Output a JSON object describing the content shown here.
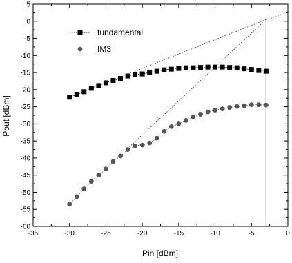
{
  "chart_data": {
    "type": "scatter",
    "xlabel": "Pin [dBm]",
    "ylabel": "Pout [dBm]",
    "xlim": [
      -35,
      0
    ],
    "ylim": [
      -60,
      5
    ],
    "xticks": [
      -35,
      -30,
      -25,
      -20,
      -15,
      -10,
      -5,
      0
    ],
    "yticks": [
      5,
      0,
      -5,
      -10,
      -15,
      -20,
      -25,
      -30,
      -35,
      -40,
      -45,
      -50,
      -55,
      -60
    ],
    "grid": false,
    "legend_position": "top-left",
    "series": [
      {
        "name": "fundamental",
        "marker": "square",
        "color": "#000000",
        "x": [
          -30,
          -29,
          -28,
          -27,
          -26,
          -25,
          -24,
          -23,
          -22,
          -21,
          -20,
          -19,
          -18,
          -17,
          -16,
          -15,
          -14,
          -13,
          -12,
          -11,
          -10,
          -9,
          -8,
          -7,
          -6,
          -5,
          -4,
          -3
        ],
        "y": [
          -22.2,
          -21.4,
          -20.6,
          -19.6,
          -18.8,
          -18.0,
          -17.3,
          -16.7,
          -16.0,
          -15.6,
          -15.4,
          -15.0,
          -14.6,
          -14.2,
          -14.0,
          -13.8,
          -13.6,
          -13.6,
          -13.5,
          -13.4,
          -13.4,
          -13.4,
          -13.5,
          -13.6,
          -13.9,
          -14.1,
          -14.4,
          -14.6
        ]
      },
      {
        "name": "IM3",
        "marker": "circle",
        "color": "#555555",
        "x": [
          -30,
          -29,
          -28,
          -27,
          -26,
          -25,
          -24,
          -23,
          -22,
          -21,
          -20,
          -19,
          -18,
          -17,
          -16,
          -15,
          -14,
          -13,
          -12,
          -11,
          -10,
          -9,
          -8,
          -7,
          -6,
          -5,
          -4,
          -3
        ],
        "y": [
          -53.5,
          -51.3,
          -49.0,
          -46.8,
          -45.0,
          -43.2,
          -41.0,
          -39.4,
          -37.5,
          -36.4,
          -36.2,
          -35.6,
          -34.2,
          -32.2,
          -30.8,
          -30.0,
          -29.0,
          -28.0,
          -27.2,
          -26.5,
          -26.0,
          -25.6,
          -25.2,
          -24.9,
          -24.7,
          -24.4,
          -24.4,
          -24.5
        ]
      }
    ],
    "extrapolation_lines": [
      {
        "x": [
          -30,
          -3
        ],
        "y": [
          -22.2,
          0.5
        ]
      },
      {
        "x": [
          -22,
          -3
        ],
        "y": [
          -37.2,
          0.5
        ]
      },
      {
        "x": [
          -3,
          -1
        ],
        "y": [
          0.5,
          1.8
        ]
      }
    ],
    "vertical_marker_x": -3
  }
}
